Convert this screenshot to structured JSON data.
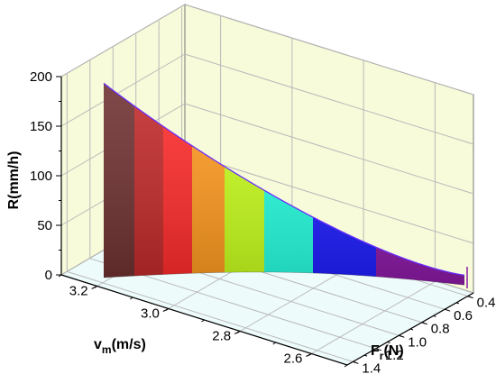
{
  "chart_data": {
    "type": "surface3d",
    "title": "",
    "zlabel": {
      "main": "R(mm/h)"
    },
    "ylabel": {
      "main": "v",
      "sub": "m",
      "rest": "(m/s)"
    },
    "xlabel": {
      "main": "F",
      "sub": "r",
      "rest": "(N)"
    },
    "z_ticks": [
      "0",
      "50",
      "100",
      "150",
      "200"
    ],
    "v_ticks": [
      "3.2",
      "3.0",
      "2.8",
      "2.6"
    ],
    "f_ticks": [
      "0.4",
      "0.6",
      "0.8",
      "1.0",
      "1.2",
      "1.4"
    ],
    "zlim": [
      0,
      200
    ],
    "vlim": [
      2.5,
      3.3
    ],
    "flim": [
      0.35,
      1.45
    ],
    "curve": {
      "z_start": 196,
      "z_end": 10,
      "description_values": [
        {
          "position": 0.0,
          "R": 196
        },
        {
          "position": 0.25,
          "R": 140
        },
        {
          "position": 0.5,
          "R": 88
        },
        {
          "position": 0.75,
          "R": 45
        },
        {
          "position": 1.0,
          "R": 10
        }
      ]
    },
    "colors": {
      "wall_bg": "#f7fbd9",
      "floor_bg": "#eefbfb",
      "grid": "#b9b9b9",
      "curve_edge": "#6a2cff",
      "bands": [
        "#6e2f2f",
        "#c12828",
        "#ff2a2a",
        "#ff9a1f",
        "#c8ff1c",
        "#25ffe0",
        "#1e1eff",
        "#8d1aa8"
      ]
    },
    "grid": true
  }
}
